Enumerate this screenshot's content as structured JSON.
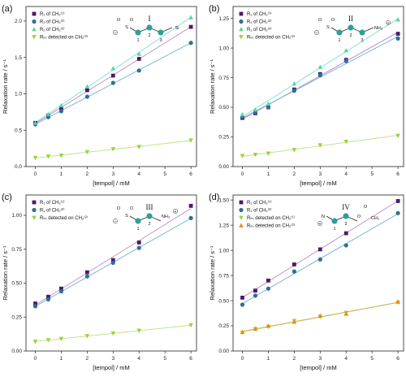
{
  "colors": {
    "purple": "#4b1a6b",
    "blue": "#2f6f95",
    "teal": "#5bd3a8",
    "lime": "#9ad23c",
    "orange": "#e88a1a",
    "fit_purple": "#b98ac9",
    "fit_blue": "#6aaed6",
    "fit_teal": "#7fe0cf",
    "fit_lime": "#b7e27a",
    "fit_olive": "#c8b85a",
    "atom": "#2aa198"
  },
  "chart_data": [
    {
      "type": "scatter",
      "panel_label": "(a)",
      "molecule_label": "I",
      "molecule_atoms": [
        "1",
        "2",
        "3"
      ],
      "molecule_atom_text": [
        "O",
        "O",
        "S",
        "Si"
      ],
      "xlabel": "[tempol] / mM",
      "ylabel": "Relaxation rate / s⁻¹",
      "xlim": [
        0,
        6
      ],
      "ylim": [
        0,
        2.2
      ],
      "xticks": [
        0,
        1,
        2,
        3,
        4,
        5,
        6
      ],
      "yticks": [
        0.0,
        0.5,
        1.0,
        1.5,
        2.0
      ],
      "ytick_labels": [
        "0.0",
        "0.5",
        "1.0",
        "1.5",
        "2.0"
      ],
      "series": [
        {
          "name": "R₁ of CH₂⁽¹⁾",
          "marker": "square",
          "color": "purple",
          "fit_color": "fit_purple",
          "x": [
            0,
            0.5,
            1,
            2,
            3,
            4,
            6
          ],
          "y": [
            0.6,
            0.7,
            0.8,
            1.05,
            1.25,
            1.48,
            1.92
          ]
        },
        {
          "name": "R₁ of CH₂⁽²⁾",
          "marker": "circle",
          "color": "blue",
          "fit_color": "fit_blue",
          "x": [
            0,
            0.5,
            1,
            2,
            3,
            4,
            6
          ],
          "y": [
            0.58,
            0.68,
            0.76,
            0.96,
            1.15,
            1.32,
            1.7
          ]
        },
        {
          "name": "R₁ of CH₂⁽³⁾",
          "marker": "triangle",
          "color": "teal",
          "fit_color": "fit_teal",
          "x": [
            0,
            0.5,
            1,
            2,
            3,
            4,
            6
          ],
          "y": [
            0.6,
            0.72,
            0.84,
            1.1,
            1.35,
            1.55,
            2.05
          ]
        },
        {
          "name": "Rₗₗₛ detected on CH₂⁽²⁾",
          "marker": "triangle-down",
          "color": "lime",
          "fit_color": "fit_lime",
          "x": [
            0,
            0.5,
            1,
            2,
            3,
            4,
            6
          ],
          "y": [
            0.12,
            0.14,
            0.15,
            0.2,
            0.24,
            0.27,
            0.36
          ]
        }
      ]
    },
    {
      "type": "scatter",
      "panel_label": "(b)",
      "molecule_label": "II",
      "molecule_atoms": [
        "1",
        "2",
        "3"
      ],
      "molecule_atom_text": [
        "O",
        "O",
        "S",
        "NH₃"
      ],
      "xlabel": "[tempol] / mM",
      "ylabel": "Relaxation rate / s⁻¹",
      "xlim": [
        0,
        6
      ],
      "ylim": [
        0,
        1.35
      ],
      "xticks": [
        0,
        1,
        2,
        3,
        4,
        5,
        6
      ],
      "yticks": [
        0.0,
        0.25,
        0.5,
        0.75,
        1.0,
        1.25
      ],
      "ytick_labels": [
        "0.00",
        "0.25",
        "0.50",
        "0.75",
        "1.00",
        "1.25"
      ],
      "series": [
        {
          "name": "R₁ of CH₂⁽¹⁾",
          "marker": "square",
          "color": "purple",
          "fit_color": "fit_purple",
          "x": [
            0,
            0.5,
            1,
            2,
            3,
            4,
            6
          ],
          "y": [
            0.41,
            0.45,
            0.5,
            0.65,
            0.78,
            0.9,
            1.12
          ]
        },
        {
          "name": "R₁ of CH₂⁽²⁾",
          "marker": "circle",
          "color": "blue",
          "fit_color": "fit_blue",
          "x": [
            0,
            0.5,
            1,
            2,
            3,
            4,
            6
          ],
          "y": [
            0.42,
            0.46,
            0.5,
            0.64,
            0.77,
            0.89,
            1.08
          ]
        },
        {
          "name": "R₁ of CH₂⁽³⁾",
          "marker": "triangle",
          "color": "teal",
          "fit_color": "fit_teal",
          "x": [
            0,
            0.5,
            1,
            2,
            3,
            4,
            6
          ],
          "y": [
            0.44,
            0.48,
            0.53,
            0.7,
            0.84,
            0.98,
            1.24
          ]
        },
        {
          "name": "Rₗₗₛ detected on CH₂⁽²⁾",
          "marker": "triangle-down",
          "color": "lime",
          "fit_color": "fit_lime",
          "x": [
            0,
            0.5,
            1,
            2,
            3,
            4,
            6
          ],
          "y": [
            0.09,
            0.1,
            0.11,
            0.14,
            0.18,
            0.21,
            0.26
          ]
        }
      ]
    },
    {
      "type": "scatter",
      "panel_label": "(c)",
      "molecule_label": "III",
      "molecule_atoms": [
        "1",
        "2"
      ],
      "molecule_atom_text": [
        "O",
        "O",
        "S",
        "NH₃"
      ],
      "xlabel": "[tempol] / mM",
      "ylabel": "Relaxation rate / s⁻¹",
      "xlim": [
        0,
        6
      ],
      "ylim": [
        0,
        1.15
      ],
      "xticks": [
        0,
        1,
        2,
        3,
        4,
        5,
        6
      ],
      "yticks": [
        0.0,
        0.25,
        0.5,
        0.75,
        1.0
      ],
      "ytick_labels": [
        "0.00",
        "0.25",
        "0.50",
        "0.75",
        "1.00"
      ],
      "series": [
        {
          "name": "R₁ of CH₂⁽¹⁾",
          "marker": "square",
          "color": "purple",
          "fit_color": "fit_purple",
          "x": [
            0,
            0.5,
            1,
            2,
            3,
            4,
            6
          ],
          "y": [
            0.35,
            0.4,
            0.46,
            0.58,
            0.67,
            0.8,
            1.07
          ]
        },
        {
          "name": "R₁ of CH₂⁽²⁾",
          "marker": "circle",
          "color": "blue",
          "fit_color": "fit_blue",
          "x": [
            0,
            0.5,
            1,
            2,
            3,
            4,
            6
          ],
          "y": [
            0.33,
            0.38,
            0.44,
            0.55,
            0.65,
            0.76,
            0.98
          ]
        },
        {
          "name": "Rₗₗₛ detected on CH₂⁽²⁾",
          "marker": "triangle-down",
          "color": "lime",
          "fit_color": "fit_lime",
          "x": [
            0,
            0.5,
            1,
            2,
            3,
            4,
            6
          ],
          "y": [
            0.07,
            0.08,
            0.09,
            0.11,
            0.13,
            0.15,
            0.19
          ]
        }
      ]
    },
    {
      "type": "scatter",
      "panel_label": "(d)",
      "molecule_label": "IV",
      "molecule_atoms": [
        "1",
        "2"
      ],
      "molecule_atom_text": [
        "N",
        "O",
        "O",
        "CH₃"
      ],
      "xlabel": "[tempol] / mM",
      "ylabel": "Relaxation rate / s⁻¹",
      "xlim": [
        0,
        6
      ],
      "ylim": [
        0,
        1.55
      ],
      "xticks": [
        0,
        1,
        2,
        3,
        4,
        5,
        6
      ],
      "yticks": [
        0.0,
        0.25,
        0.5,
        0.75,
        1.0,
        1.25,
        1.5
      ],
      "ytick_labels": [
        "0.00",
        "0.25",
        "0.50",
        "0.75",
        "1.00",
        "1.25",
        "1.50"
      ],
      "series": [
        {
          "name": "R₁ of CH₂⁽¹⁾",
          "marker": "square",
          "color": "purple",
          "fit_color": "fit_purple",
          "x": [
            0,
            0.5,
            1,
            2,
            3,
            4,
            6
          ],
          "y": [
            0.53,
            0.6,
            0.7,
            0.86,
            1.01,
            1.17,
            1.49
          ]
        },
        {
          "name": "R₁ of CH₂⁽²⁾",
          "marker": "circle",
          "color": "blue",
          "fit_color": "fit_blue",
          "x": [
            0,
            0.5,
            1,
            2,
            3,
            4,
            6
          ],
          "y": [
            0.46,
            0.55,
            0.62,
            0.79,
            0.91,
            1.05,
            1.37
          ]
        },
        {
          "name": "Rₗₗₛ detected on CH₂⁽¹⁾",
          "marker": "triangle-down",
          "color": "lime",
          "fit_color": "fit_olive",
          "x": [
            0,
            0.5,
            1,
            2,
            3,
            4,
            6
          ],
          "y": [
            0.18,
            0.22,
            0.24,
            0.3,
            0.34,
            0.38,
            0.48
          ]
        },
        {
          "name": "Rₗₗₛ detected on CH₂⁽²⁾",
          "marker": "triangle",
          "color": "orange",
          "fit_color": "fit_olive",
          "x": [
            0,
            0.5,
            1,
            2,
            3,
            4,
            6
          ],
          "y": [
            0.19,
            0.22,
            0.25,
            0.29,
            0.35,
            0.37,
            0.49
          ]
        }
      ]
    }
  ]
}
